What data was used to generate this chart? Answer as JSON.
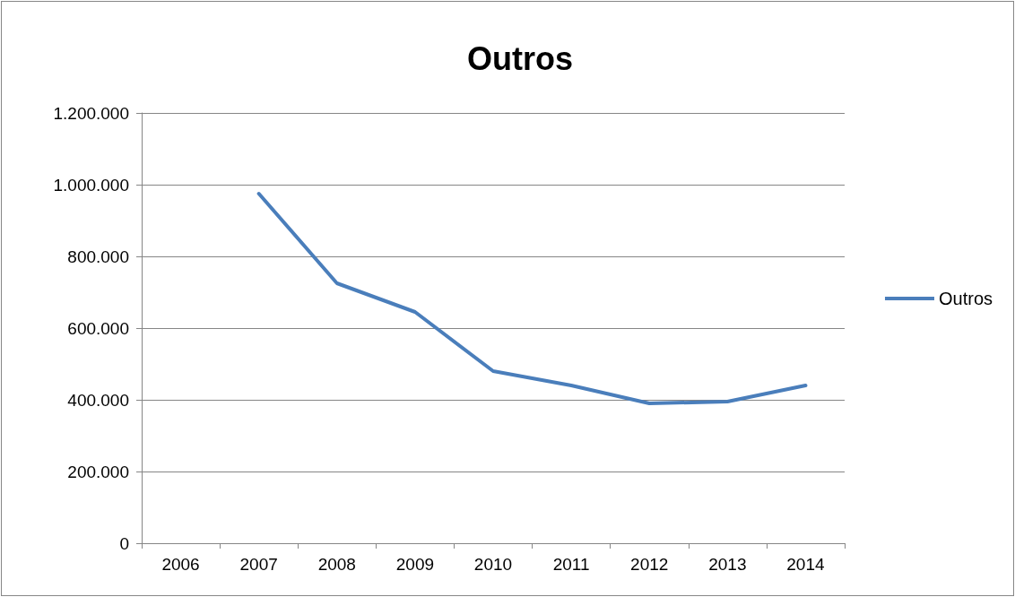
{
  "chart_data": {
    "type": "line",
    "title": "Outros",
    "categories": [
      "2006",
      "2007",
      "2008",
      "2009",
      "2010",
      "2011",
      "2012",
      "2013",
      "2014"
    ],
    "series": [
      {
        "name": "Outros",
        "color": "#4a7ebb",
        "values": [
          null,
          975000,
          725000,
          645000,
          480000,
          440000,
          390000,
          395000,
          440000
        ]
      }
    ],
    "ylim": [
      0,
      1200000
    ],
    "yticks": [
      0,
      {
        "value": 200000,
        "label": "200.000"
      },
      {
        "value": 400000,
        "label": "400.000"
      },
      {
        "value": 600000,
        "label": "600.000"
      },
      {
        "value": 800000,
        "label": "800.000"
      },
      {
        "value": 1000000,
        "label": "1.000.000"
      },
      {
        "value": 1200000,
        "label": "1.200.000"
      }
    ],
    "grid": "y",
    "legend": "right",
    "marker": "none",
    "line_style": "solid"
  }
}
